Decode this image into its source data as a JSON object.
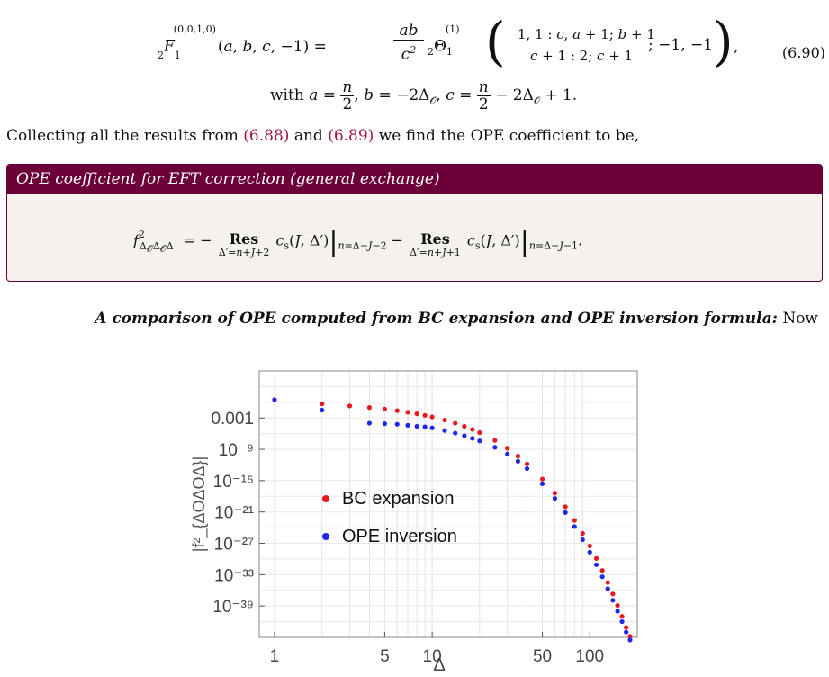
{
  "equation_6_90": {
    "line1": "₂F₁^(0,0,1,0)(a, b, c, −1) = (ab / c²) ₂Θ₁^(1) ( 1,1 : c, a+1; b+1 / c+1 : 2; c+1 ; −1, −1 ),",
    "line2": "with a = n/2, b = −2Δ_O, c = n/2 − 2Δ_O + 1.",
    "number": "(6.90)"
  },
  "paragraph": {
    "before": "Collecting all the results from ",
    "ref1": "(6.88)",
    "middle": " and ",
    "ref2": "(6.89)",
    "after": " we find the OPE coefficient to be,"
  },
  "box": {
    "title": "OPE coefficient for EFT correction (general exchange)",
    "formula": "f²_{ΔOΔOΔ} = − Res_{Δ′=n+J+2} c_s(J,Δ′)|_{n=Δ−J−2} − Res_{Δ′=n+J+1} c_s(J,Δ′)|_{n=Δ−J−1}."
  },
  "section_heading": {
    "bold_italic": "A comparison of OPE computed from BC expansion and OPE inversion formula:",
    "rest": " Now"
  },
  "chart_data": {
    "type": "scatter",
    "xlabel": "Δ",
    "ylabel": "|f²_{ΔOΔOΔ}|",
    "x_scale": "log",
    "y_scale": "log",
    "xlim": [
      0.8,
      200
    ],
    "ylim_log10": [
      -45,
      6
    ],
    "x_ticks": [
      1,
      5,
      10,
      50,
      100
    ],
    "x_tick_labels": [
      "1",
      "5",
      "10",
      "50",
      "100"
    ],
    "y_ticks_log10": [
      -3,
      -9,
      -15,
      -21,
      -27,
      -33,
      -39
    ],
    "y_tick_labels": [
      "0.001",
      "10⁻⁹",
      "10⁻¹⁵",
      "10⁻²¹",
      "10⁻²⁷",
      "10⁻³³",
      "10⁻³⁹"
    ],
    "grid": true,
    "legend_position": "center-left",
    "series": [
      {
        "name": "BC expansion",
        "color": "#e6191e",
        "x": [
          1,
          2,
          3,
          4,
          5,
          6,
          7,
          8,
          9,
          10,
          12,
          14,
          16,
          18,
          20,
          25,
          30,
          35,
          40,
          50,
          60,
          70,
          80,
          90,
          100,
          110,
          120,
          130,
          140,
          150,
          160,
          170,
          180
        ],
        "log10_y": [
          0.5,
          -0.3,
          -0.7,
          -1.0,
          -1.3,
          -1.6,
          -1.9,
          -2.2,
          -2.5,
          -2.8,
          -3.4,
          -4.0,
          -4.6,
          -5.2,
          -5.8,
          -7.3,
          -8.8,
          -10.3,
          -11.8,
          -14.7,
          -17.4,
          -20.0,
          -22.6,
          -25.1,
          -27.5,
          -29.9,
          -32.2,
          -34.5,
          -36.7,
          -38.9,
          -41.0,
          -43.1,
          -44.8
        ]
      },
      {
        "name": "OPE inversion",
        "color": "#1f27e8",
        "x": [
          1,
          2,
          4,
          5,
          6,
          7,
          8,
          9,
          10,
          12,
          14,
          16,
          18,
          20,
          25,
          30,
          35,
          40,
          50,
          60,
          70,
          80,
          90,
          100,
          110,
          120,
          130,
          140,
          150,
          160,
          170,
          180
        ],
        "log10_y": [
          0.5,
          -1.5,
          -4.0,
          -4.1,
          -4.2,
          -4.4,
          -4.6,
          -4.7,
          -4.9,
          -5.4,
          -5.9,
          -6.4,
          -6.9,
          -7.4,
          -8.6,
          -9.9,
          -11.3,
          -12.7,
          -15.6,
          -18.4,
          -21.1,
          -23.8,
          -26.3,
          -28.7,
          -31.1,
          -33.4,
          -35.7,
          -37.9,
          -40.0,
          -42.0,
          -44.0,
          -45.5
        ]
      }
    ]
  }
}
